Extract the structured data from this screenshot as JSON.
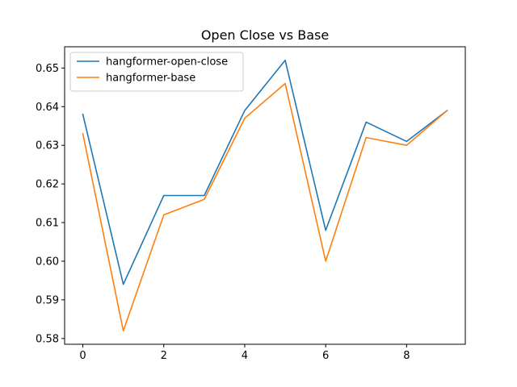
{
  "chart_data": {
    "type": "line",
    "title": "Open Close vs Base",
    "xlabel": "",
    "ylabel": "",
    "x": [
      0,
      1,
      2,
      3,
      4,
      5,
      6,
      7,
      8,
      9
    ],
    "xlim": [
      -0.45,
      9.45
    ],
    "ylim": [
      0.5785,
      0.6555
    ],
    "xticks": [
      0,
      2,
      4,
      6,
      8
    ],
    "yticks": [
      0.58,
      0.59,
      0.6,
      0.61,
      0.62,
      0.63,
      0.64,
      0.65
    ],
    "ytick_labels": [
      "0.58",
      "0.59",
      "0.60",
      "0.61",
      "0.62",
      "0.63",
      "0.64",
      "0.65"
    ],
    "grid": false,
    "legend_position": "top-left",
    "series": [
      {
        "name": "hangformer-open-close",
        "color": "#1f77b4",
        "values": [
          0.638,
          0.594,
          0.617,
          0.617,
          0.639,
          0.652,
          0.608,
          0.636,
          0.631,
          0.639
        ]
      },
      {
        "name": "hangformer-base",
        "color": "#ff7f0e",
        "values": [
          0.633,
          0.582,
          0.612,
          0.616,
          0.637,
          0.646,
          0.6,
          0.632,
          0.63,
          0.639
        ]
      }
    ]
  }
}
